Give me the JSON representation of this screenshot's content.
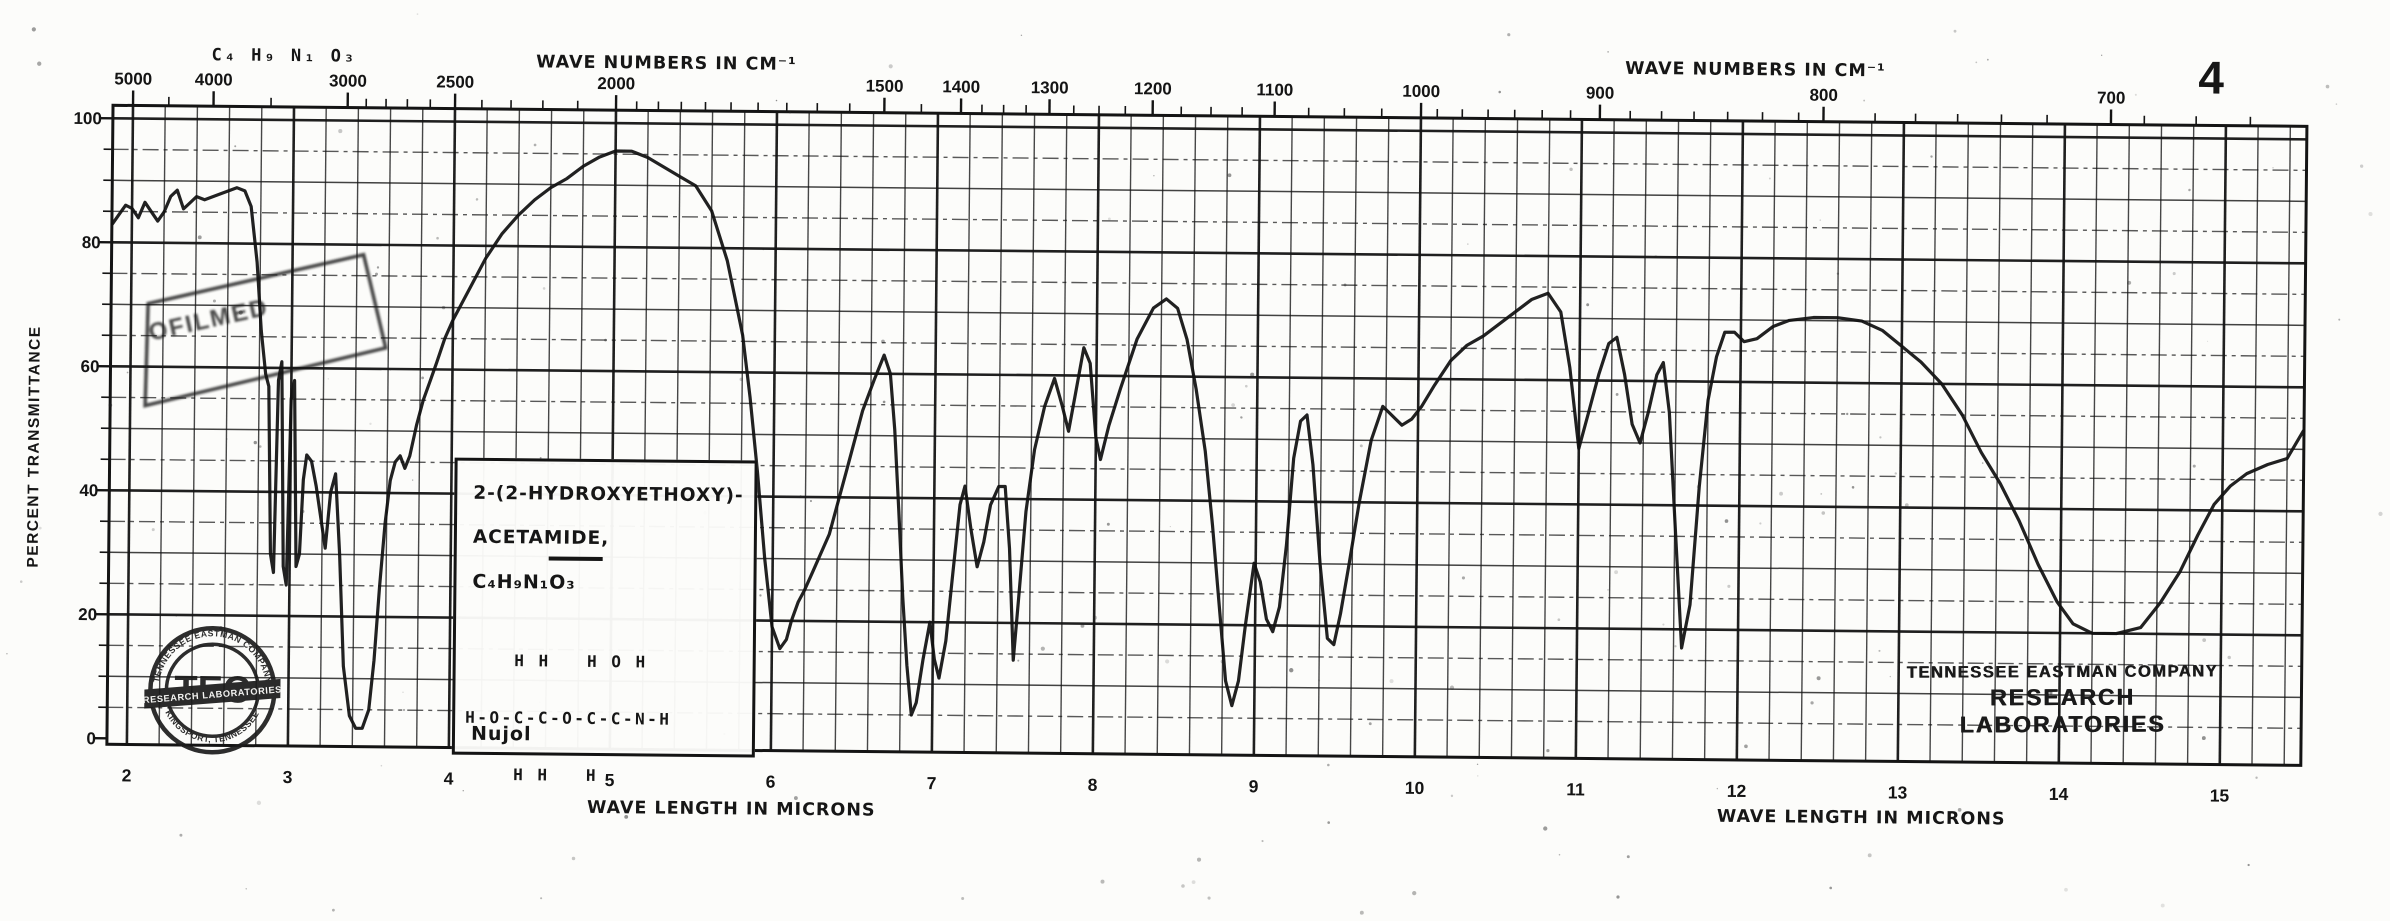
{
  "page": {
    "number": "4",
    "handwritten_formula": "C₄ H₉ N₁ O₃"
  },
  "sample_box": {
    "name_line1": "2-(2-HYDROXYETHOXY)-",
    "name_line2": "ACETAMIDE,",
    "formula": "C₄H₉N₁O₃",
    "structure": [
      "    H H   H O H",
      "H-O-C-C-O-C-C-N-H",
      "    H H   H"
    ],
    "medium": "Nujol"
  },
  "seal": {
    "arc_top": "TENNESSEE EASTMAN COMPANY",
    "arc_bottom": "KINGSPORT, TENNESSEE",
    "monogram": "TEC",
    "banner": "RESEARCH LABORATORIES"
  },
  "stamp_right": {
    "line1": "TENNESSEE EASTMAN COMPANY",
    "line2": "RESEARCH LABORATORIES"
  },
  "diagonal_stamp": {
    "text": "OFILMED"
  },
  "chart_data": {
    "type": "line",
    "title": "Infrared absorption spectrum of 2-(2-hydroxyethoxy)-acetamide (Nujol mull)",
    "grid": "on",
    "ink_color": "#141414",
    "x_bottom": {
      "label": "WAVE LENGTH IN MICRONS",
      "unit": "microns",
      "range": [
        1.88,
        15.5
      ],
      "ticks": [
        2,
        3,
        4,
        5,
        6,
        7,
        8,
        9,
        10,
        11,
        12,
        13,
        14,
        15
      ]
    },
    "x_top": {
      "label": "WAVE NUMBERS IN CM⁻¹",
      "unit": "cm-1",
      "labeled_ticks": [
        5000,
        4000,
        3000,
        2500,
        2000,
        1500,
        1400,
        1300,
        1200,
        1100,
        1000,
        900,
        800,
        700
      ]
    },
    "y": {
      "label": "PERCENT TRANSMITTANCE",
      "range": [
        0,
        100
      ],
      "ticks": [
        0,
        20,
        40,
        60,
        80,
        100
      ],
      "grid_minor_step": 5
    },
    "series": [
      {
        "name": "percent transmittance vs wavelength (microns)",
        "points": [
          [
            1.88,
            83
          ],
          [
            1.92,
            84.5
          ],
          [
            1.96,
            86
          ],
          [
            2.0,
            85.5
          ],
          [
            2.04,
            84
          ],
          [
            2.08,
            86.5
          ],
          [
            2.12,
            85
          ],
          [
            2.16,
            83.5
          ],
          [
            2.2,
            85
          ],
          [
            2.24,
            87.5
          ],
          [
            2.28,
            88.5
          ],
          [
            2.32,
            85.5
          ],
          [
            2.36,
            86.5
          ],
          [
            2.4,
            87.5
          ],
          [
            2.45,
            87
          ],
          [
            2.5,
            87.5
          ],
          [
            2.55,
            88
          ],
          [
            2.6,
            88.5
          ],
          [
            2.65,
            89
          ],
          [
            2.7,
            88.5
          ],
          [
            2.74,
            86
          ],
          [
            2.78,
            77
          ],
          [
            2.81,
            66
          ],
          [
            2.84,
            59
          ],
          [
            2.86,
            57
          ],
          [
            2.88,
            30
          ],
          [
            2.9,
            27
          ],
          [
            2.92,
            58
          ],
          [
            2.94,
            61
          ],
          [
            2.96,
            28
          ],
          [
            2.98,
            25
          ],
          [
            3.0,
            55
          ],
          [
            3.02,
            58
          ],
          [
            3.04,
            28
          ],
          [
            3.06,
            30
          ],
          [
            3.08,
            42
          ],
          [
            3.1,
            46
          ],
          [
            3.13,
            45
          ],
          [
            3.16,
            41
          ],
          [
            3.19,
            36
          ],
          [
            3.22,
            31
          ],
          [
            3.25,
            40
          ],
          [
            3.28,
            43
          ],
          [
            3.31,
            30
          ],
          [
            3.34,
            12
          ],
          [
            3.38,
            4
          ],
          [
            3.42,
            2
          ],
          [
            3.46,
            2
          ],
          [
            3.5,
            5
          ],
          [
            3.53,
            13
          ],
          [
            3.56,
            25
          ],
          [
            3.59,
            35
          ],
          [
            3.62,
            42
          ],
          [
            3.65,
            45
          ],
          [
            3.68,
            46
          ],
          [
            3.71,
            44
          ],
          [
            3.74,
            46
          ],
          [
            3.78,
            51
          ],
          [
            3.82,
            55
          ],
          [
            3.86,
            58
          ],
          [
            3.9,
            61
          ],
          [
            3.95,
            65
          ],
          [
            4.0,
            68
          ],
          [
            4.1,
            73
          ],
          [
            4.2,
            78
          ],
          [
            4.3,
            82
          ],
          [
            4.4,
            85
          ],
          [
            4.5,
            87.5
          ],
          [
            4.6,
            89.5
          ],
          [
            4.7,
            91
          ],
          [
            4.8,
            93
          ],
          [
            4.9,
            94.5
          ],
          [
            5.0,
            95.5
          ],
          [
            5.1,
            95.5
          ],
          [
            5.2,
            94.5
          ],
          [
            5.3,
            93
          ],
          [
            5.4,
            91.5
          ],
          [
            5.5,
            90
          ],
          [
            5.6,
            86
          ],
          [
            5.7,
            78
          ],
          [
            5.75,
            72
          ],
          [
            5.8,
            66
          ],
          [
            5.85,
            56
          ],
          [
            5.9,
            44
          ],
          [
            5.95,
            30
          ],
          [
            6.0,
            19
          ],
          [
            6.05,
            15.5
          ],
          [
            6.09,
            17
          ],
          [
            6.12,
            20
          ],
          [
            6.16,
            23
          ],
          [
            6.2,
            25
          ],
          [
            6.25,
            28
          ],
          [
            6.35,
            34
          ],
          [
            6.45,
            44
          ],
          [
            6.55,
            54
          ],
          [
            6.62,
            59
          ],
          [
            6.68,
            63
          ],
          [
            6.72,
            60
          ],
          [
            6.75,
            51
          ],
          [
            6.78,
            38
          ],
          [
            6.81,
            24
          ],
          [
            6.84,
            13
          ],
          [
            6.87,
            5
          ],
          [
            6.9,
            7
          ],
          [
            6.94,
            14
          ],
          [
            6.98,
            20
          ],
          [
            7.01,
            14
          ],
          [
            7.04,
            11
          ],
          [
            7.08,
            17
          ],
          [
            7.12,
            28
          ],
          [
            7.16,
            39
          ],
          [
            7.19,
            42
          ],
          [
            7.23,
            35
          ],
          [
            7.27,
            29
          ],
          [
            7.31,
            33
          ],
          [
            7.35,
            39
          ],
          [
            7.4,
            42
          ],
          [
            7.44,
            42
          ],
          [
            7.47,
            32
          ],
          [
            7.5,
            14
          ],
          [
            7.53,
            24
          ],
          [
            7.57,
            38
          ],
          [
            7.62,
            48
          ],
          [
            7.68,
            55
          ],
          [
            7.74,
            59.5
          ],
          [
            7.79,
            55
          ],
          [
            7.83,
            51
          ],
          [
            7.87,
            57
          ],
          [
            7.92,
            64.5
          ],
          [
            7.96,
            62
          ],
          [
            8.0,
            50
          ],
          [
            8.03,
            46.5
          ],
          [
            8.08,
            52
          ],
          [
            8.15,
            58
          ],
          [
            8.25,
            66
          ],
          [
            8.35,
            71
          ],
          [
            8.43,
            72.5
          ],
          [
            8.5,
            71
          ],
          [
            8.56,
            66
          ],
          [
            8.62,
            58
          ],
          [
            8.68,
            48
          ],
          [
            8.73,
            36
          ],
          [
            8.78,
            22
          ],
          [
            8.82,
            11
          ],
          [
            8.86,
            7
          ],
          [
            8.9,
            11
          ],
          [
            8.94,
            20
          ],
          [
            8.99,
            30
          ],
          [
            9.03,
            27
          ],
          [
            9.07,
            21
          ],
          [
            9.11,
            19
          ],
          [
            9.15,
            23
          ],
          [
            9.19,
            33
          ],
          [
            9.23,
            47
          ],
          [
            9.27,
            53
          ],
          [
            9.31,
            54
          ],
          [
            9.35,
            46
          ],
          [
            9.4,
            30
          ],
          [
            9.45,
            18
          ],
          [
            9.49,
            17
          ],
          [
            9.53,
            22
          ],
          [
            9.58,
            30
          ],
          [
            9.64,
            40
          ],
          [
            9.71,
            50
          ],
          [
            9.78,
            55.5
          ],
          [
            9.84,
            54
          ],
          [
            9.9,
            52.5
          ],
          [
            9.96,
            53.5
          ],
          [
            10.02,
            55.5
          ],
          [
            10.1,
            59
          ],
          [
            10.2,
            63
          ],
          [
            10.3,
            65.5
          ],
          [
            10.4,
            67
          ],
          [
            10.5,
            69
          ],
          [
            10.6,
            71
          ],
          [
            10.7,
            73
          ],
          [
            10.8,
            74
          ],
          [
            10.88,
            71
          ],
          [
            10.94,
            62
          ],
          [
            11.0,
            49
          ],
          [
            11.06,
            55
          ],
          [
            11.12,
            61
          ],
          [
            11.18,
            66
          ],
          [
            11.23,
            67
          ],
          [
            11.28,
            61
          ],
          [
            11.33,
            53
          ],
          [
            11.38,
            50
          ],
          [
            11.43,
            55
          ],
          [
            11.48,
            61
          ],
          [
            11.52,
            63
          ],
          [
            11.56,
            55
          ],
          [
            11.6,
            38
          ],
          [
            11.65,
            17
          ],
          [
            11.7,
            24
          ],
          [
            11.75,
            43
          ],
          [
            11.8,
            57
          ],
          [
            11.85,
            64
          ],
          [
            11.9,
            68
          ],
          [
            11.96,
            68
          ],
          [
            12.02,
            66.5
          ],
          [
            12.1,
            67
          ],
          [
            12.2,
            69
          ],
          [
            12.3,
            70
          ],
          [
            12.45,
            70.5
          ],
          [
            12.6,
            70.5
          ],
          [
            12.75,
            70
          ],
          [
            12.88,
            68.5
          ],
          [
            13.0,
            66
          ],
          [
            13.12,
            63.5
          ],
          [
            13.25,
            60
          ],
          [
            13.38,
            55
          ],
          [
            13.5,
            49
          ],
          [
            13.62,
            44
          ],
          [
            13.74,
            38
          ],
          [
            13.86,
            31
          ],
          [
            13.98,
            25
          ],
          [
            14.08,
            21.5
          ],
          [
            14.2,
            20
          ],
          [
            14.35,
            20
          ],
          [
            14.5,
            21
          ],
          [
            14.62,
            25
          ],
          [
            14.74,
            30
          ],
          [
            14.85,
            36
          ],
          [
            14.95,
            41
          ],
          [
            15.05,
            44
          ],
          [
            15.15,
            46
          ],
          [
            15.28,
            47.5
          ],
          [
            15.4,
            48.5
          ],
          [
            15.5,
            53
          ]
        ]
      }
    ]
  }
}
